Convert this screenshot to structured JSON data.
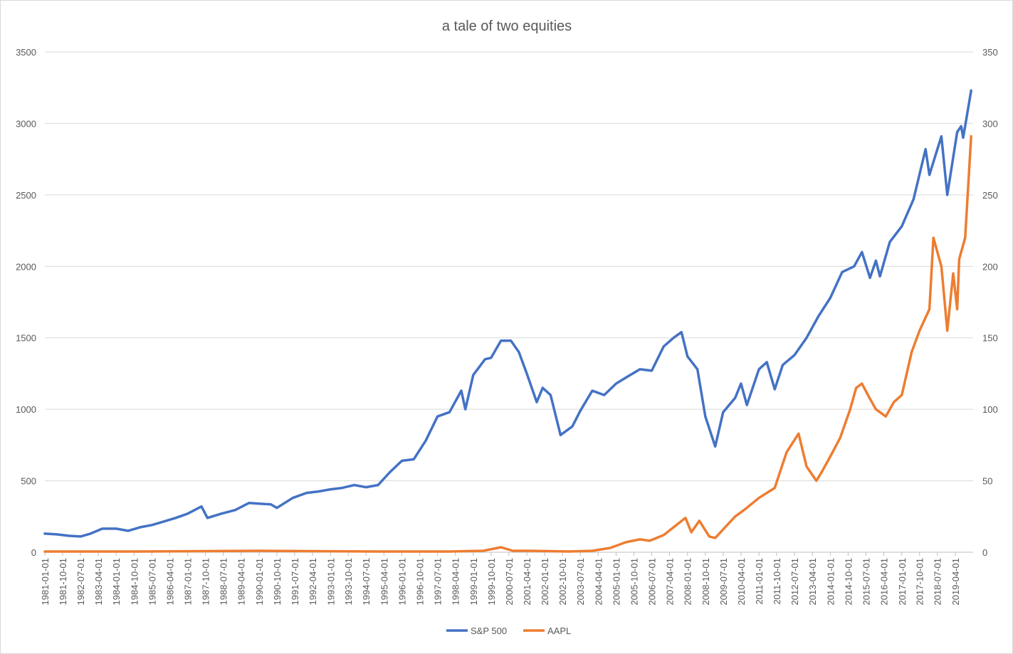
{
  "chart_data": {
    "type": "line",
    "title": "a tale of two equities",
    "xlabel": "",
    "ylabel": "",
    "y2label": "",
    "ylim": [
      0,
      3500
    ],
    "y2lim": [
      0,
      350
    ],
    "xlim": [
      "1981-01-01",
      "2019-12-01"
    ],
    "left_ticks": [
      "0",
      "500",
      "1000",
      "1500",
      "2000",
      "2500",
      "3000",
      "3500"
    ],
    "right_ticks": [
      "0",
      "50",
      "100",
      "150",
      "200",
      "250",
      "300",
      "350"
    ],
    "x_tick_labels": [
      "1981-01-01",
      "1981-10-01",
      "1982-07-01",
      "1983-04-01",
      "1984-01-01",
      "1984-10-01",
      "1985-07-01",
      "1986-04-01",
      "1987-01-01",
      "1987-10-01",
      "1988-07-01",
      "1989-04-01",
      "1990-01-01",
      "1990-10-01",
      "1991-07-01",
      "1992-04-01",
      "1993-01-01",
      "1993-10-01",
      "1994-07-01",
      "1995-04-01",
      "1996-01-01",
      "1996-10-01",
      "1997-07-01",
      "1998-04-01",
      "1999-01-01",
      "1999-10-01",
      "2000-07-01",
      "2001-04-01",
      "2002-01-01",
      "2002-10-01",
      "2003-07-01",
      "2004-04-01",
      "2005-01-01",
      "2005-10-01",
      "2006-07-01",
      "2007-04-01",
      "2008-01-01",
      "2008-10-01",
      "2009-07-01",
      "2010-04-01",
      "2011-01-01",
      "2011-10-01",
      "2012-07-01",
      "2013-04-01",
      "2014-01-01",
      "2014-10-01",
      "2015-07-01",
      "2016-04-01",
      "2017-01-01",
      "2017-10-01",
      "2018-07-01",
      "2019-04-01"
    ],
    "grid": true,
    "legend_position": "bottom",
    "series": [
      {
        "name": "S&P 500",
        "axis": "left",
        "color": "#4472c4",
        "x": [
          "1981-01-01",
          "1981-07-01",
          "1982-01-01",
          "1982-07-01",
          "1982-12-01",
          "1983-06-01",
          "1984-01-01",
          "1984-07-01",
          "1985-01-01",
          "1985-07-01",
          "1986-01-01",
          "1986-07-01",
          "1987-01-01",
          "1987-08-01",
          "1987-11-01",
          "1988-06-01",
          "1989-01-01",
          "1989-08-01",
          "1990-01-01",
          "1990-07-01",
          "1990-10-01",
          "1991-06-01",
          "1992-01-01",
          "1992-07-01",
          "1993-01-01",
          "1993-07-01",
          "1994-01-01",
          "1994-07-01",
          "1995-01-01",
          "1995-07-01",
          "1996-01-01",
          "1996-07-01",
          "1997-01-01",
          "1997-07-01",
          "1998-01-01",
          "1998-07-01",
          "1998-09-01",
          "1999-01-01",
          "1999-07-01",
          "1999-10-01",
          "2000-03-01",
          "2000-08-01",
          "2000-12-01",
          "2001-04-01",
          "2001-09-01",
          "2001-12-01",
          "2002-04-01",
          "2002-09-01",
          "2003-03-01",
          "2003-07-01",
          "2004-01-01",
          "2004-07-01",
          "2005-01-01",
          "2005-07-01",
          "2006-01-01",
          "2006-07-01",
          "2007-01-01",
          "2007-06-01",
          "2007-10-01",
          "2008-01-01",
          "2008-06-01",
          "2008-10-01",
          "2009-03-01",
          "2009-07-01",
          "2010-01-01",
          "2010-04-01",
          "2010-07-01",
          "2011-01-01",
          "2011-05-01",
          "2011-09-01",
          "2012-01-01",
          "2012-07-01",
          "2013-01-01",
          "2013-07-01",
          "2014-01-01",
          "2014-07-01",
          "2015-01-01",
          "2015-05-01",
          "2015-09-01",
          "2015-12-01",
          "2016-02-01",
          "2016-07-01",
          "2017-01-01",
          "2017-07-01",
          "2018-01-01",
          "2018-03-01",
          "2018-09-01",
          "2018-12-01",
          "2019-05-01",
          "2019-07-01",
          "2019-08-01",
          "2019-12-01"
        ],
        "y": [
          130,
          125,
          115,
          110,
          130,
          165,
          165,
          150,
          175,
          190,
          215,
          240,
          270,
          320,
          240,
          270,
          295,
          345,
          340,
          335,
          310,
          380,
          415,
          425,
          440,
          450,
          470,
          455,
          470,
          560,
          640,
          650,
          780,
          950,
          980,
          1130,
          1000,
          1240,
          1350,
          1360,
          1480,
          1480,
          1400,
          1250,
          1050,
          1150,
          1100,
          820,
          880,
          990,
          1130,
          1100,
          1180,
          1230,
          1280,
          1270,
          1440,
          1500,
          1540,
          1370,
          1280,
          950,
          740,
          980,
          1080,
          1180,
          1030,
          1280,
          1330,
          1140,
          1310,
          1380,
          1500,
          1650,
          1780,
          1960,
          2000,
          2100,
          1920,
          2040,
          1930,
          2170,
          2280,
          2470,
          2820,
          2640,
          2910,
          2500,
          2940,
          2980,
          2900,
          3230
        ]
      },
      {
        "name": "AAPL",
        "axis": "right",
        "color": "#ed7d31",
        "x": [
          "1981-01-01",
          "1985-01-01",
          "1990-01-01",
          "1995-01-01",
          "1998-01-01",
          "1999-06-01",
          "2000-03-01",
          "2000-09-01",
          "2001-06-01",
          "2003-01-01",
          "2004-01-01",
          "2004-10-01",
          "2005-06-01",
          "2006-01-01",
          "2006-06-01",
          "2007-01-01",
          "2007-12-01",
          "2008-03-01",
          "2008-07-01",
          "2008-12-01",
          "2009-03-01",
          "2009-09-01",
          "2010-01-01",
          "2010-06-01",
          "2011-01-01",
          "2011-09-01",
          "2012-03-01",
          "2012-09-01",
          "2013-01-01",
          "2013-06-01",
          "2013-09-01",
          "2014-01-01",
          "2014-06-01",
          "2014-11-01",
          "2015-02-01",
          "2015-05-01",
          "2015-08-01",
          "2015-12-01",
          "2016-05-01",
          "2016-09-01",
          "2017-01-01",
          "2017-06-01",
          "2017-10-01",
          "2018-03-01",
          "2018-05-01",
          "2018-09-01",
          "2018-12-01",
          "2019-03-01",
          "2019-05-01",
          "2019-06-01",
          "2019-09-01",
          "2019-12-01"
        ],
        "y": [
          0.5,
          0.5,
          1,
          0.5,
          0.5,
          1,
          3.5,
          1,
          1,
          0.5,
          1,
          3,
          7,
          9,
          8,
          12,
          24,
          14,
          22,
          11,
          10,
          19,
          25,
          30,
          38,
          45,
          70,
          83,
          60,
          50,
          57,
          67,
          80,
          100,
          115,
          118,
          110,
          100,
          95,
          105,
          110,
          140,
          155,
          170,
          220,
          200,
          155,
          195,
          170,
          205,
          220,
          291
        ]
      }
    ]
  }
}
